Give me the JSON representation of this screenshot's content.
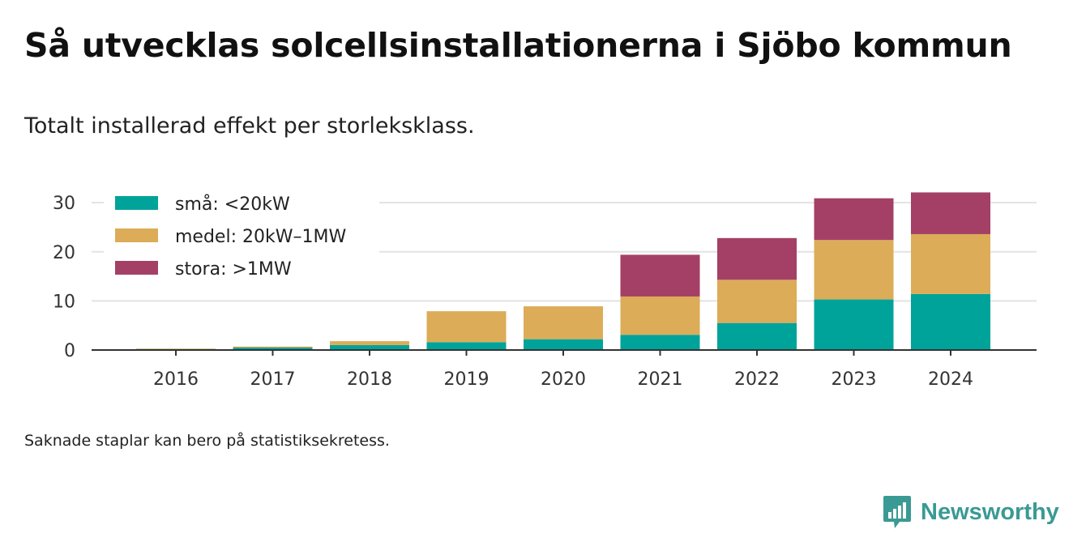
{
  "title": "Så utvecklas solcellsinstallationerna i Sjöbo kommun",
  "subtitle": "Totalt installerad effekt per storleksklass.",
  "note": "Saknade staplar kan bero på statistiksekretess.",
  "brand": {
    "name": "Newsworthy",
    "icon": "newsworthy-logo-icon",
    "color": "#3a9a94"
  },
  "chart_data": {
    "type": "bar",
    "stacked": true,
    "categories": [
      "2016",
      "2017",
      "2018",
      "2019",
      "2020",
      "2021",
      "2022",
      "2023",
      "2024"
    ],
    "series": [
      {
        "name": "små: <20kW",
        "color": "#00a39a",
        "values": [
          0.2,
          0.5,
          1.0,
          1.6,
          2.2,
          3.1,
          5.5,
          10.3,
          11.4
        ]
      },
      {
        "name": "medel: 20kW–1MW",
        "color": "#dcac58",
        "values": [
          0.1,
          0.2,
          0.8,
          6.3,
          6.7,
          7.8,
          8.8,
          12.1,
          12.2
        ]
      },
      {
        "name": "stora: >1MW",
        "color": "#a44066",
        "values": [
          0,
          0,
          0,
          0,
          0,
          8.5,
          8.5,
          8.5,
          8.5
        ]
      }
    ],
    "yticks": [
      0,
      10,
      20,
      30
    ],
    "ylim": [
      0,
      33
    ],
    "grid": true,
    "legend": "top-left"
  }
}
